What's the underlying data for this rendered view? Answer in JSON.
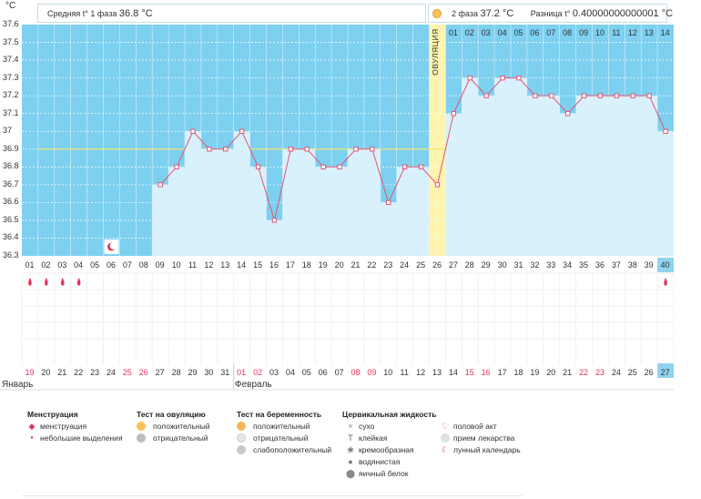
{
  "unit": "°C",
  "header": {
    "phase1_label": "Средняя t° 1 фаза",
    "phase1_value": "36.8 °C",
    "phase2_label": "2 фаза",
    "phase2_value": "37.2 °C",
    "diff_label": "Разница t°",
    "diff_value": "0.40000000000001 °C"
  },
  "ovulation_label": "ОВУЛЯЦИЯ",
  "colors": {
    "phase_blue": "#7dd0f0",
    "bar_blue": "#d8f1fc",
    "line": "#e25574",
    "ovulation": "#fff3b0",
    "coverline": "#f2e36a"
  },
  "chart_data": {
    "type": "line",
    "title": "",
    "ylabel": "°C",
    "ylim": [
      36.3,
      37.6
    ],
    "yticks": [
      "37.6",
      "37.5",
      "37.4",
      "37.3",
      "37.2",
      "37.1",
      "37",
      "36.9",
      "36.8",
      "36.7",
      "36.6",
      "36.5",
      "36.4",
      "36.3"
    ],
    "coverline": 36.9,
    "cycle_days": [
      "01",
      "02",
      "03",
      "04",
      "05",
      "06",
      "07",
      "08",
      "09",
      "10",
      "11",
      "12",
      "13",
      "14",
      "15",
      "16",
      "17",
      "18",
      "19",
      "20",
      "21",
      "22",
      "23",
      "24",
      "25",
      "26",
      "27",
      "28",
      "29",
      "30",
      "31",
      "32",
      "33",
      "34",
      "35",
      "36",
      "37",
      "38",
      "39",
      "40"
    ],
    "dates": [
      "19",
      "20",
      "21",
      "22",
      "23",
      "24",
      "25",
      "26",
      "27",
      "28",
      "29",
      "30",
      "31",
      "01",
      "02",
      "03",
      "04",
      "05",
      "06",
      "07",
      "08",
      "09",
      "10",
      "11",
      "12",
      "13",
      "14",
      "15",
      "16",
      "17",
      "18",
      "19",
      "20",
      "21",
      "22",
      "23",
      "24",
      "25",
      "26",
      "27"
    ],
    "red_dates": [
      0,
      6,
      7,
      13,
      14,
      20,
      21,
      27,
      28,
      34,
      35
    ],
    "phase2_days": [
      "01",
      "02",
      "03",
      "04",
      "05",
      "06",
      "07",
      "08",
      "09",
      "10",
      "11",
      "12",
      "13",
      "14"
    ],
    "ovulation_day_index": 25,
    "temperatures": [
      null,
      null,
      null,
      null,
      null,
      null,
      null,
      null,
      36.7,
      36.8,
      37.0,
      36.9,
      36.9,
      37.0,
      36.8,
      36.5,
      36.9,
      36.9,
      36.8,
      36.8,
      36.9,
      36.9,
      36.6,
      36.8,
      36.8,
      36.7,
      37.1,
      37.3,
      37.2,
      37.3,
      37.3,
      37.2,
      37.2,
      37.1,
      37.2,
      37.2,
      37.2,
      37.2,
      37.2,
      37.0
    ]
  },
  "months": {
    "january": "Январь",
    "february": "Февраль"
  },
  "legend": {
    "menstruation": {
      "title": "Менструация",
      "items": [
        "менструация",
        "небольшие выделения"
      ]
    },
    "ovulation_test": {
      "title": "Тест на овуляцию",
      "items": [
        "положительный",
        "отрицательный"
      ]
    },
    "pregnancy_test": {
      "title": "Тест на беременность",
      "items": [
        "положительный",
        "отрицательный",
        "слабоположительный"
      ]
    },
    "cervical": {
      "title": "Цервикальная жидкость",
      "items": [
        "сухо",
        "клейкая",
        "кремообразная",
        "водянистая",
        "яичный белок"
      ]
    },
    "other": {
      "items": [
        "половой акт",
        "прием лекарства",
        "лунный календарь"
      ]
    }
  }
}
